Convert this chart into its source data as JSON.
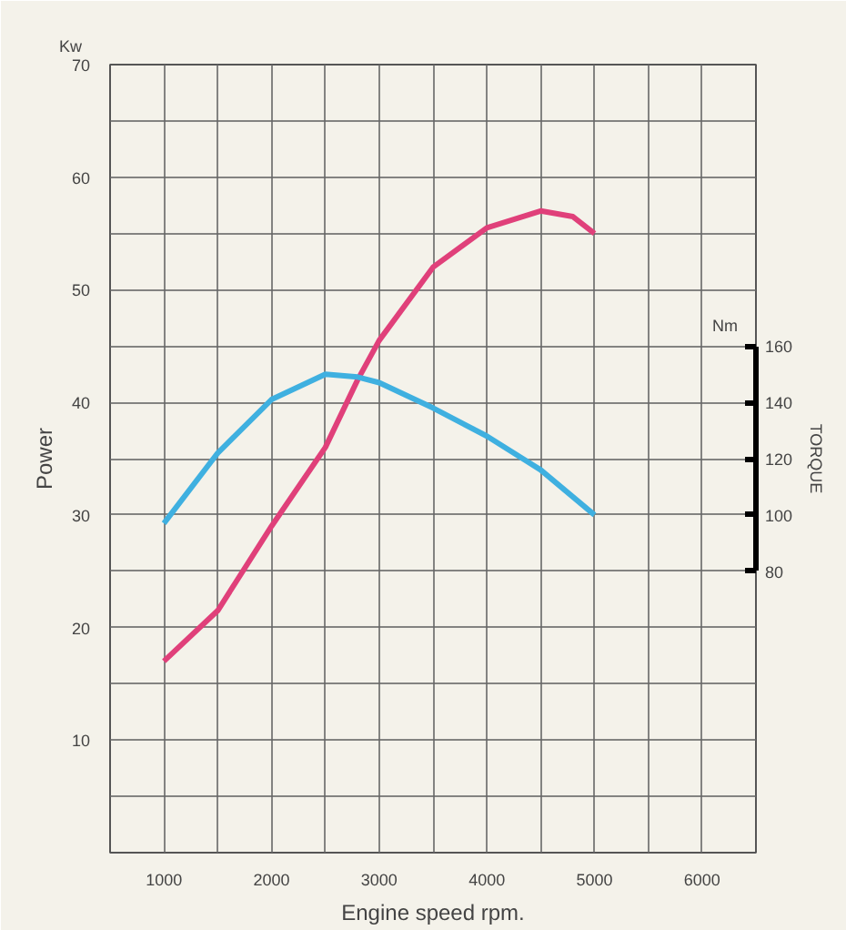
{
  "chart_data": {
    "type": "line",
    "xlabel": "Engine speed rpm.",
    "ylabel": "Power",
    "y2label": "TORQUE",
    "annotations": [
      "Kw",
      "Nm"
    ],
    "xlim": [
      500,
      6500
    ],
    "ylim": [
      0,
      70
    ],
    "y2lim": [
      -20,
      260
    ],
    "xticks": [
      1000,
      {
        "value": 1500,
        "label": null
      },
      2000,
      {
        "value": 2500,
        "label": null
      },
      3000,
      {
        "value": 3500,
        "label": null
      },
      4000,
      {
        "value": 4500,
        "label": null
      },
      5000,
      {
        "value": 5500,
        "label": null
      },
      6000
    ],
    "yticks": [
      {
        "value": 5,
        "label": null
      },
      10,
      {
        "value": 15,
        "label": null
      },
      20,
      {
        "value": 25,
        "label": null
      },
      30,
      {
        "value": 35,
        "label": null
      },
      40,
      {
        "value": 45,
        "label": null
      },
      50,
      {
        "value": 55,
        "label": null
      },
      60,
      {
        "value": 65,
        "label": null
      },
      70
    ],
    "y2ticks": [
      80,
      100,
      120,
      140,
      160
    ],
    "grid": true,
    "series": [
      {
        "color": "#e0407a",
        "x": [
          1000,
          1500,
          2000,
          2500,
          2800,
          3000,
          3500,
          4000,
          4500,
          4800,
          5000
        ],
        "values": [
          17,
          21.5,
          29,
          36,
          42,
          45.5,
          52,
          55.5,
          57,
          56.5,
          55
        ]
      },
      {
        "color": "#3fb0e0",
        "axis": "y2",
        "x": [
          1000,
          1500,
          2000,
          2500,
          2800,
          3000,
          3500,
          4000,
          4500,
          5000
        ],
        "values": [
          97,
          122,
          141,
          150,
          149,
          147,
          138,
          128,
          116,
          100
        ]
      }
    ]
  }
}
